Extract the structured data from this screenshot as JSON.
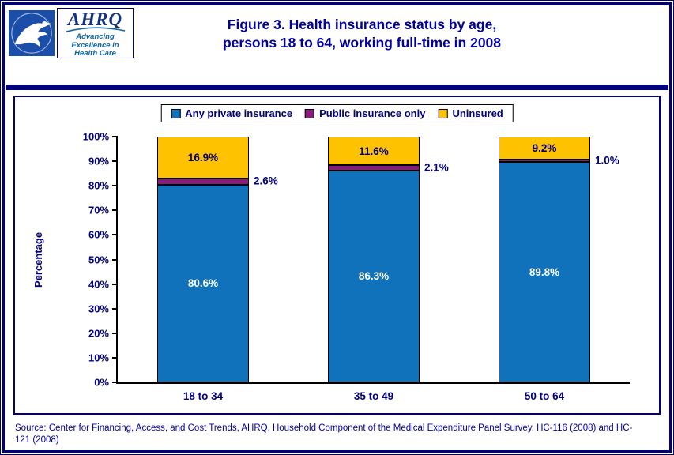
{
  "header": {
    "ahrq_acronym": "AHRQ",
    "ahrq_tagline": "Advancing Excellence in Health Care",
    "title_line1": "Figure 3. Health insurance status by age,",
    "title_line2": "persons 18 to 64, working full-time in 2008"
  },
  "chart_data": {
    "type": "bar",
    "stacked": true,
    "title": "Figure 3. Health insurance status by age, persons 18 to 64, working full-time in 2008",
    "categories": [
      "18 to 34",
      "35 to 49",
      "50 to 64"
    ],
    "series": [
      {
        "name": "Any private insurance",
        "values": [
          80.6,
          86.3,
          89.8
        ],
        "labels": [
          "80.6%",
          "86.3%",
          "89.8%"
        ],
        "color": "#1072BA",
        "label_color": "#FFFFFF",
        "label_placement": "inside"
      },
      {
        "name": "Public insurance only",
        "values": [
          2.6,
          2.1,
          1.0
        ],
        "labels": [
          "2.6%",
          "2.1%",
          "1.0%"
        ],
        "color": "#8B1A7D",
        "label_color": "#000080",
        "label_placement": "outside-right"
      },
      {
        "name": "Uninsured",
        "values": [
          16.9,
          11.6,
          9.2
        ],
        "labels": [
          "16.9%",
          "11.6%",
          "9.2%"
        ],
        "color": "#FFC200",
        "label_color": "#000080",
        "label_placement": "inside"
      }
    ],
    "xlabel": "",
    "ylabel": "Percentage",
    "ylim": [
      0,
      100
    ],
    "y_ticks": [
      "0%",
      "10%",
      "20%",
      "30%",
      "40%",
      "50%",
      "60%",
      "70%",
      "80%",
      "90%",
      "100%"
    ],
    "grid": false,
    "legend_position": "top"
  },
  "footer": {
    "source": "Source: Center for Financing, Access, and Cost Trends, AHRQ, Household Component of the Medical Expenditure Panel Survey, HC-116 (2008) and HC-121 (2008)"
  }
}
